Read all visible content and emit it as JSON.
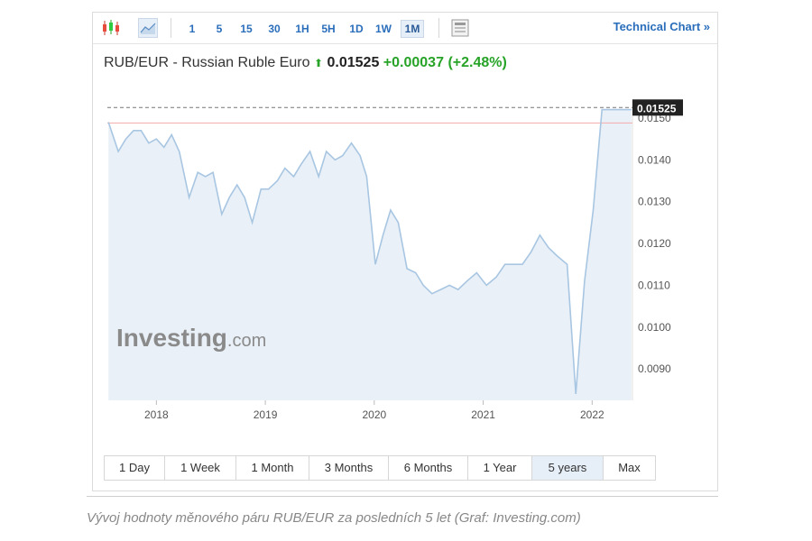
{
  "toolbar": {
    "intervals": [
      "1",
      "5",
      "15",
      "30",
      "1H",
      "5H",
      "1D",
      "1W",
      "1M"
    ],
    "active_interval": "1M",
    "technical_chart_label": "Technical Chart »"
  },
  "header": {
    "pair_name": "RUB/EUR - Russian Ruble Euro",
    "arrow": "⬆",
    "price": "0.01525",
    "change": "+0.00037",
    "change_pct": "(+2.48%)",
    "up_color": "#27a327"
  },
  "watermark": {
    "brand": "Investing",
    "suffix": ".com"
  },
  "ranges": {
    "items": [
      "1 Day",
      "1 Week",
      "1 Month",
      "3 Months",
      "6 Months",
      "1 Year",
      "5 years",
      "Max"
    ],
    "active": "5 years"
  },
  "caption": "Vývoj hodnoty měnového páru RUB/EUR za posledních 5 let (Graf: Investing.com)",
  "chart_data": {
    "type": "area",
    "x_tick_labels": [
      "2018",
      "2019",
      "2020",
      "2021",
      "2022"
    ],
    "x_tick_values": [
      2018,
      2019,
      2020,
      2021,
      2022
    ],
    "y_tick_labels": [
      "0.0150",
      "0.0140",
      "0.0130",
      "0.0120",
      "0.0110",
      "0.0100",
      "0.0090"
    ],
    "y_tick_values": [
      0.015,
      0.014,
      0.013,
      0.012,
      0.011,
      0.01,
      0.009
    ],
    "xlim": [
      2017.55,
      2022.37
    ],
    "ylim": [
      0.00825,
      0.01545
    ],
    "current_value": 0.01525,
    "current_label": "0.01525",
    "previous_close": 0.01488,
    "line_color": "#a8c6e2",
    "fill_color": "#e9f0f7",
    "x": [
      2017.56,
      2017.65,
      2017.72,
      2017.79,
      2017.86,
      2017.93,
      2018.0,
      2018.07,
      2018.14,
      2018.21,
      2018.3,
      2018.38,
      2018.45,
      2018.52,
      2018.6,
      2018.67,
      2018.74,
      2018.81,
      2018.88,
      2018.96,
      2019.03,
      2019.11,
      2019.18,
      2019.26,
      2019.33,
      2019.41,
      2019.49,
      2019.56,
      2019.64,
      2019.71,
      2019.79,
      2019.87,
      2019.93,
      2020.01,
      2020.08,
      2020.15,
      2020.22,
      2020.3,
      2020.38,
      2020.45,
      2020.53,
      2020.61,
      2020.69,
      2020.77,
      2020.85,
      2020.94,
      2021.03,
      2021.12,
      2021.2,
      2021.28,
      2021.36,
      2021.44,
      2021.52,
      2021.6,
      2021.68,
      2021.77,
      2021.85,
      2021.93,
      2022.01,
      2022.09,
      2022.17,
      2022.24,
      2022.31,
      2022.36
    ],
    "values": [
      0.0149,
      0.0142,
      0.0145,
      0.0147,
      0.0147,
      0.0144,
      0.0145,
      0.0143,
      0.0146,
      0.0142,
      0.0131,
      0.0137,
      0.0136,
      0.0137,
      0.0127,
      0.0131,
      0.0134,
      0.0131,
      0.0125,
      0.0133,
      0.0133,
      0.0135,
      0.0138,
      0.0136,
      0.0139,
      0.0142,
      0.0136,
      0.0142,
      0.014,
      0.0141,
      0.0144,
      0.0141,
      0.0136,
      0.0115,
      0.0122,
      0.0128,
      0.0125,
      0.0114,
      0.0113,
      0.011,
      0.0108,
      0.0109,
      0.011,
      0.0109,
      0.0111,
      0.0113,
      0.011,
      0.0112,
      0.0115,
      0.0115,
      0.0115,
      0.0118,
      0.0122,
      0.0119,
      0.0117,
      0.0115,
      0.0084,
      0.0111,
      0.0128,
      0.0152,
      0.0152,
      0.0152,
      0.0152,
      0.0152
    ]
  }
}
